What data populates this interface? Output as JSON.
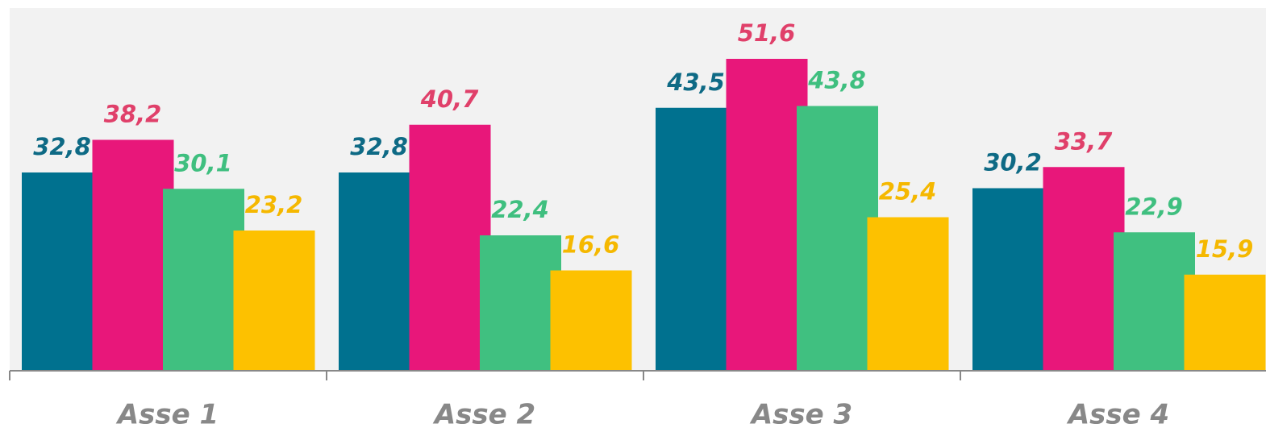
{
  "chart_data": {
    "type": "bar",
    "categories": [
      "Asse 1",
      "Asse 2",
      "Asse 3",
      "Asse 4"
    ],
    "series": [
      {
        "color": "#00718f",
        "label_color": "#0e6a85",
        "values": [
          32.8,
          32.8,
          43.5,
          30.2
        ],
        "value_labels": [
          "32,8",
          "32,8",
          "43,5",
          "30,2"
        ]
      },
      {
        "color": "#e8177a",
        "label_color": "#e0406a",
        "values": [
          38.2,
          40.7,
          51.6,
          33.7
        ],
        "value_labels": [
          "38,2",
          "40,7",
          "51,6",
          "33,7"
        ]
      },
      {
        "color": "#40c080",
        "label_color": "#3fbf7f",
        "values": [
          30.1,
          22.4,
          43.8,
          22.9
        ],
        "value_labels": [
          "30,1",
          "22,4",
          "43,8",
          "22,9"
        ]
      },
      {
        "color": "#fdc100",
        "label_color": "#f5b800",
        "values": [
          23.2,
          16.6,
          25.4,
          15.9
        ],
        "value_labels": [
          "23,2",
          "16,6",
          "25,4",
          "15,9"
        ]
      }
    ],
    "ylim": [
      0,
      60
    ]
  }
}
